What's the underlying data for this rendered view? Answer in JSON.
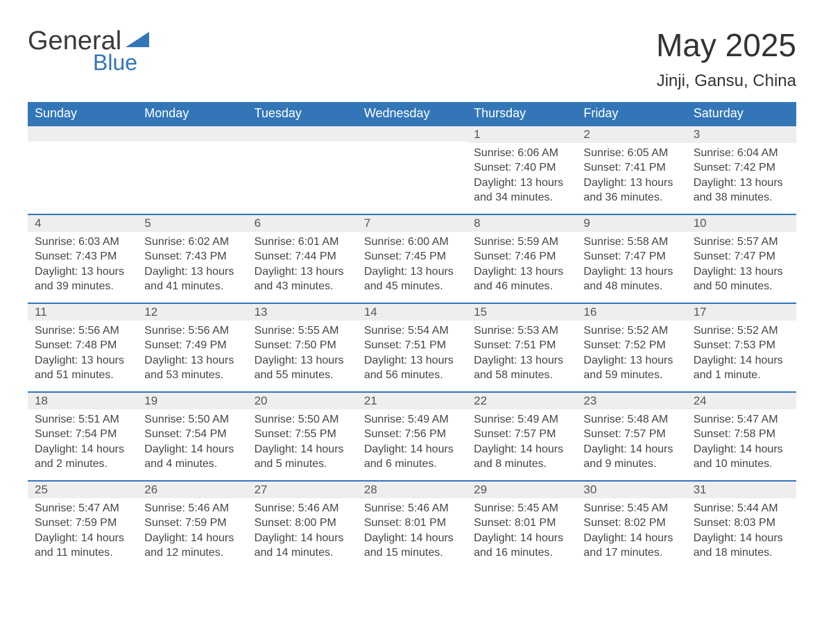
{
  "brand": {
    "text_top": "General",
    "text_bottom": "Blue",
    "triangle_color": "#3376b8",
    "text_top_color": "#3a3a3a",
    "text_bottom_color": "#3376b8"
  },
  "title": "May 2025",
  "location": "Jinji, Gansu, China",
  "colors": {
    "header_bg": "#3376b8",
    "header_text": "#ffffff",
    "daynum_bg": "#eeeeee",
    "daynum_border": "#3376b8",
    "body_bg": "#ffffff",
    "text": "#444444"
  },
  "weekdays": [
    "Sunday",
    "Monday",
    "Tuesday",
    "Wednesday",
    "Thursday",
    "Friday",
    "Saturday"
  ],
  "weeks": [
    [
      {
        "day": null
      },
      {
        "day": null
      },
      {
        "day": null
      },
      {
        "day": null
      },
      {
        "day": "1",
        "sunrise": "6:06 AM",
        "sunset": "7:40 PM",
        "daylight": "13 hours and 34 minutes."
      },
      {
        "day": "2",
        "sunrise": "6:05 AM",
        "sunset": "7:41 PM",
        "daylight": "13 hours and 36 minutes."
      },
      {
        "day": "3",
        "sunrise": "6:04 AM",
        "sunset": "7:42 PM",
        "daylight": "13 hours and 38 minutes."
      }
    ],
    [
      {
        "day": "4",
        "sunrise": "6:03 AM",
        "sunset": "7:43 PM",
        "daylight": "13 hours and 39 minutes."
      },
      {
        "day": "5",
        "sunrise": "6:02 AM",
        "sunset": "7:43 PM",
        "daylight": "13 hours and 41 minutes."
      },
      {
        "day": "6",
        "sunrise": "6:01 AM",
        "sunset": "7:44 PM",
        "daylight": "13 hours and 43 minutes."
      },
      {
        "day": "7",
        "sunrise": "6:00 AM",
        "sunset": "7:45 PM",
        "daylight": "13 hours and 45 minutes."
      },
      {
        "day": "8",
        "sunrise": "5:59 AM",
        "sunset": "7:46 PM",
        "daylight": "13 hours and 46 minutes."
      },
      {
        "day": "9",
        "sunrise": "5:58 AM",
        "sunset": "7:47 PM",
        "daylight": "13 hours and 48 minutes."
      },
      {
        "day": "10",
        "sunrise": "5:57 AM",
        "sunset": "7:47 PM",
        "daylight": "13 hours and 50 minutes."
      }
    ],
    [
      {
        "day": "11",
        "sunrise": "5:56 AM",
        "sunset": "7:48 PM",
        "daylight": "13 hours and 51 minutes."
      },
      {
        "day": "12",
        "sunrise": "5:56 AM",
        "sunset": "7:49 PM",
        "daylight": "13 hours and 53 minutes."
      },
      {
        "day": "13",
        "sunrise": "5:55 AM",
        "sunset": "7:50 PM",
        "daylight": "13 hours and 55 minutes."
      },
      {
        "day": "14",
        "sunrise": "5:54 AM",
        "sunset": "7:51 PM",
        "daylight": "13 hours and 56 minutes."
      },
      {
        "day": "15",
        "sunrise": "5:53 AM",
        "sunset": "7:51 PM",
        "daylight": "13 hours and 58 minutes."
      },
      {
        "day": "16",
        "sunrise": "5:52 AM",
        "sunset": "7:52 PM",
        "daylight": "13 hours and 59 minutes."
      },
      {
        "day": "17",
        "sunrise": "5:52 AM",
        "sunset": "7:53 PM",
        "daylight": "14 hours and 1 minute."
      }
    ],
    [
      {
        "day": "18",
        "sunrise": "5:51 AM",
        "sunset": "7:54 PM",
        "daylight": "14 hours and 2 minutes."
      },
      {
        "day": "19",
        "sunrise": "5:50 AM",
        "sunset": "7:54 PM",
        "daylight": "14 hours and 4 minutes."
      },
      {
        "day": "20",
        "sunrise": "5:50 AM",
        "sunset": "7:55 PM",
        "daylight": "14 hours and 5 minutes."
      },
      {
        "day": "21",
        "sunrise": "5:49 AM",
        "sunset": "7:56 PM",
        "daylight": "14 hours and 6 minutes."
      },
      {
        "day": "22",
        "sunrise": "5:49 AM",
        "sunset": "7:57 PM",
        "daylight": "14 hours and 8 minutes."
      },
      {
        "day": "23",
        "sunrise": "5:48 AM",
        "sunset": "7:57 PM",
        "daylight": "14 hours and 9 minutes."
      },
      {
        "day": "24",
        "sunrise": "5:47 AM",
        "sunset": "7:58 PM",
        "daylight": "14 hours and 10 minutes."
      }
    ],
    [
      {
        "day": "25",
        "sunrise": "5:47 AM",
        "sunset": "7:59 PM",
        "daylight": "14 hours and 11 minutes."
      },
      {
        "day": "26",
        "sunrise": "5:46 AM",
        "sunset": "7:59 PM",
        "daylight": "14 hours and 12 minutes."
      },
      {
        "day": "27",
        "sunrise": "5:46 AM",
        "sunset": "8:00 PM",
        "daylight": "14 hours and 14 minutes."
      },
      {
        "day": "28",
        "sunrise": "5:46 AM",
        "sunset": "8:01 PM",
        "daylight": "14 hours and 15 minutes."
      },
      {
        "day": "29",
        "sunrise": "5:45 AM",
        "sunset": "8:01 PM",
        "daylight": "14 hours and 16 minutes."
      },
      {
        "day": "30",
        "sunrise": "5:45 AM",
        "sunset": "8:02 PM",
        "daylight": "14 hours and 17 minutes."
      },
      {
        "day": "31",
        "sunrise": "5:44 AM",
        "sunset": "8:03 PM",
        "daylight": "14 hours and 18 minutes."
      }
    ]
  ],
  "labels": {
    "sunrise": "Sunrise: ",
    "sunset": "Sunset: ",
    "daylight": "Daylight: "
  },
  "typography": {
    "title_fontsize": 46,
    "location_fontsize": 24,
    "header_fontsize": 18,
    "daynum_fontsize": 17,
    "body_fontsize": 16,
    "font_family": "Arial"
  }
}
